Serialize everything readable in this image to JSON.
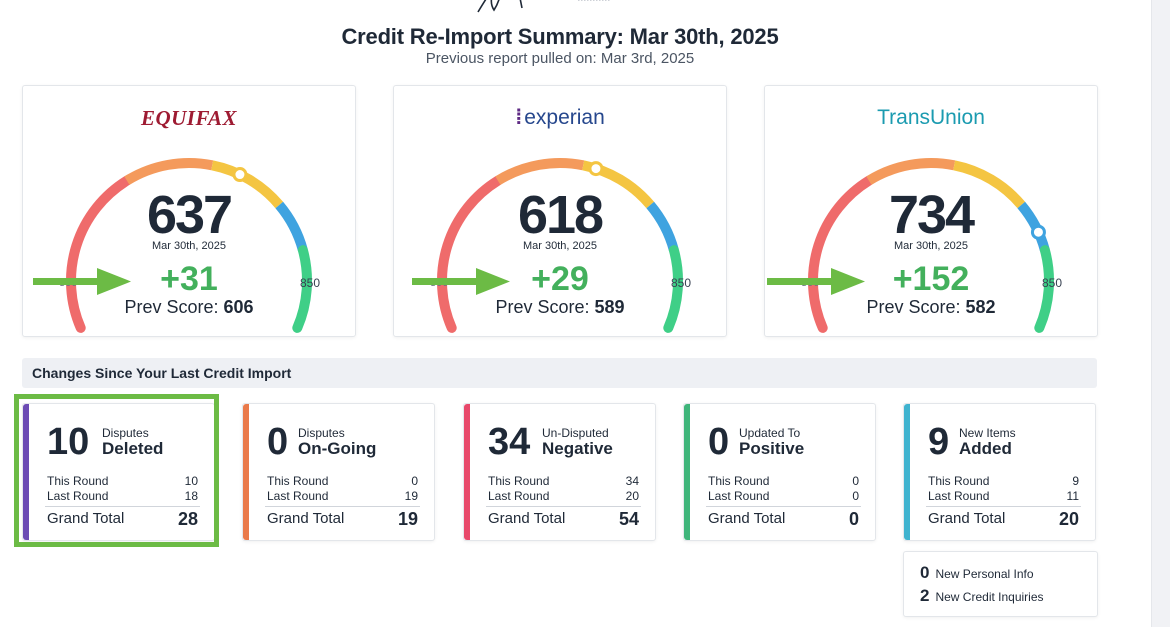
{
  "header": {
    "title": "Credit Re-Import Summary: Mar 30th, 2025",
    "subtitle": "Previous report pulled on: Mar 3rd, 2025"
  },
  "bureaus": [
    {
      "name": "EQUIFAX",
      "score": "637",
      "date": "Mar 30th, 2025",
      "change": "+31",
      "prev_label": "Prev Score:",
      "prev_score": "606",
      "min_label": "300",
      "max_label": "850",
      "indicator_score": 637
    },
    {
      "name": "experian",
      "score": "618",
      "date": "Mar 30th, 2025",
      "change": "+29",
      "prev_label": "Prev Score:",
      "prev_score": "589",
      "min_label": "300",
      "max_label": "850",
      "indicator_score": 618
    },
    {
      "name": "TransUnion",
      "score": "734",
      "date": "Mar 30th, 2025",
      "change": "+152",
      "prev_label": "Prev Score:",
      "prev_score": "582",
      "min_label": "300",
      "max_label": "850",
      "indicator_score": 734
    }
  ],
  "gauge": {
    "min": 300,
    "max": 850,
    "colors": [
      "#ef6b6b",
      "#f49a5c",
      "#f4c542",
      "#3fa3e0",
      "#3fcf87"
    ]
  },
  "arrow_color": "#6cbb45",
  "changes": {
    "section_title": "Changes Since Your Last Credit Import",
    "cards": [
      {
        "count": "10",
        "small": "Disputes",
        "big": "Deleted",
        "color": "#6c4bb4",
        "this_round_label": "This Round",
        "this_round": "10",
        "last_round_label": "Last Round",
        "last_round": "18",
        "total_label": "Grand Total",
        "total": "28"
      },
      {
        "count": "0",
        "small": "Disputes",
        "big": "On-Going",
        "color": "#ea7a4a",
        "this_round_label": "This Round",
        "this_round": "0",
        "last_round_label": "Last Round",
        "last_round": "19",
        "total_label": "Grand Total",
        "total": "19"
      },
      {
        "count": "34",
        "small": "Un-Disputed",
        "big": "Negative",
        "color": "#e8486a",
        "this_round_label": "This Round",
        "this_round": "34",
        "last_round_label": "Last Round",
        "last_round": "20",
        "total_label": "Grand Total",
        "total": "54"
      },
      {
        "count": "0",
        "small": "Updated To",
        "big": "Positive",
        "color": "#3fb57a",
        "this_round_label": "This Round",
        "this_round": "0",
        "last_round_label": "Last Round",
        "last_round": "0",
        "total_label": "Grand Total",
        "total": "0"
      },
      {
        "count": "9",
        "small": "New Items",
        "big": "Added",
        "color": "#3fb3cf",
        "this_round_label": "This Round",
        "this_round": "9",
        "last_round_label": "Last Round",
        "last_round": "11",
        "total_label": "Grand Total",
        "total": "20"
      }
    ],
    "extra": [
      {
        "count": "0",
        "label": "New Personal Info"
      },
      {
        "count": "2",
        "label": "New Credit Inquiries"
      }
    ]
  },
  "highlight_color": "#6cbb45"
}
